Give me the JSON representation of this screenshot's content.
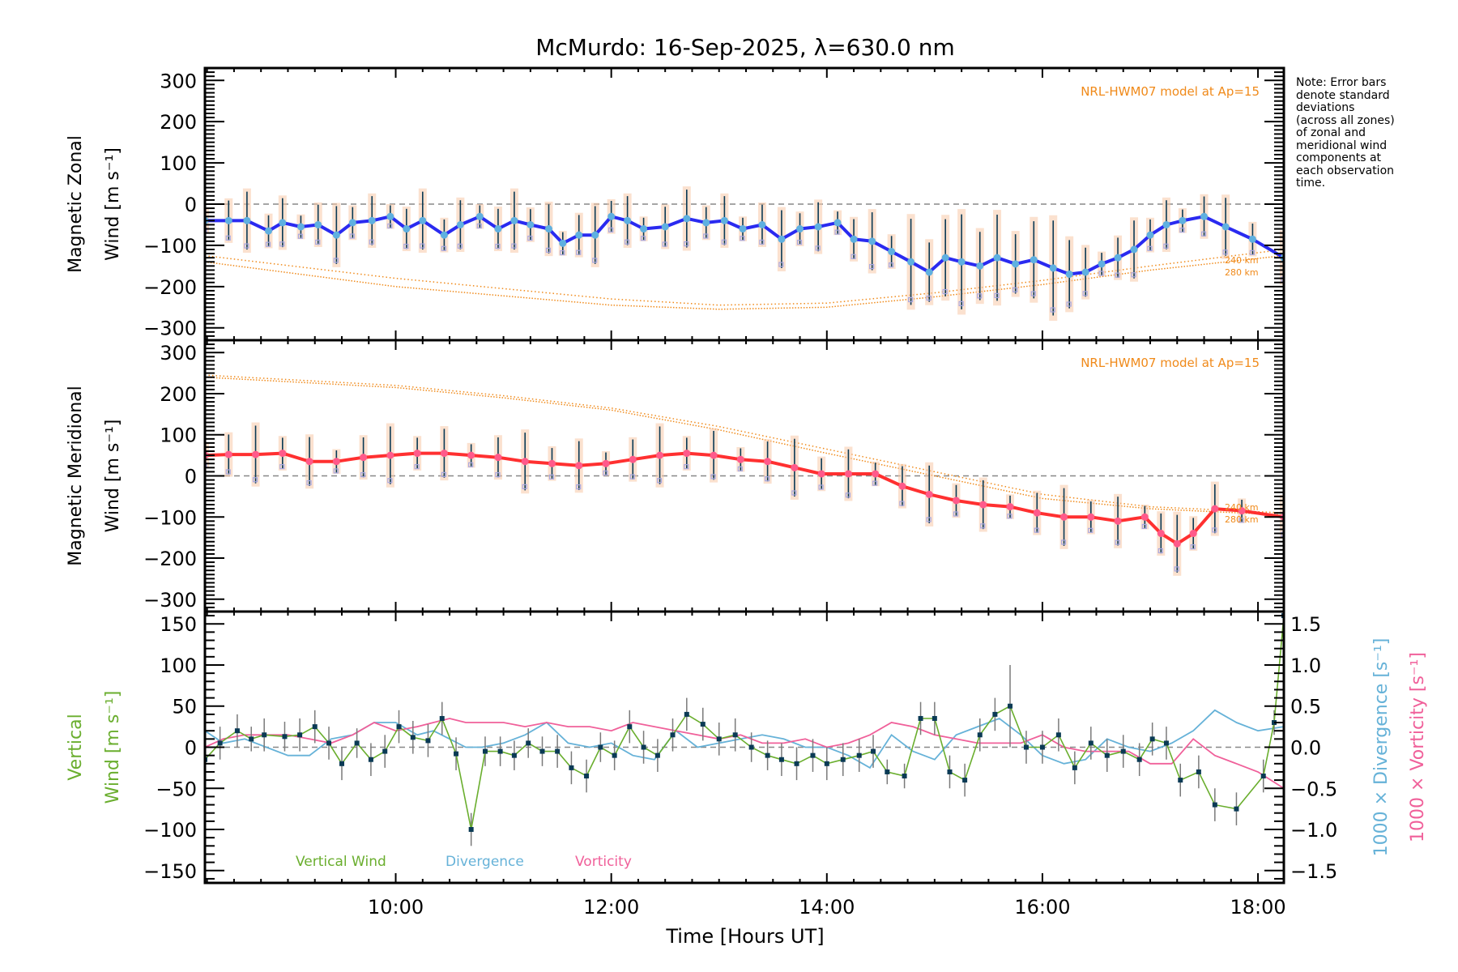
{
  "chart_data": {
    "title": "McMurdo: 16-Sep-2025, λ=630.0 nm",
    "note": "Note: Error bars\ndenote standard\ndeviations\n(across all zones)\nof zonal and\nmeridional wind\ncomponents at\neach observation\ntime.",
    "xlabel": "Time [Hours UT]",
    "xlim": [
      8.23,
      18.24
    ],
    "xticks": [
      {
        "value": 10,
        "label": "10:00"
      },
      {
        "value": 12,
        "label": "12:00"
      },
      {
        "value": 14,
        "label": "14:00"
      },
      {
        "value": 16,
        "label": "16:00"
      },
      {
        "value": 18,
        "label": "18:00"
      }
    ],
    "colors": {
      "zonal": "#2a2af0",
      "zonal_marker": "#5fb0e0",
      "meridional": "#ff3030",
      "meridional_marker": "#ff5a8a",
      "model": "#f08a1a",
      "vertical": "#6aae2e",
      "divergence": "#66b2d8",
      "vorticity": "#f0609a",
      "errorbar": "#0a3a55",
      "zone_point": "#a8a8e0",
      "zero_line": "#888888"
    },
    "panels": [
      {
        "type": "line",
        "id": "zonal",
        "ylabel_line1": "Magnetic Zonal",
        "ylabel_line2": "Wind [m s⁻¹]",
        "ylim": [
          -330,
          330
        ],
        "yticks": [
          300,
          200,
          100,
          0,
          -100,
          -200,
          -300
        ],
        "model_label": "NRL-HWM07 model at Ap=15",
        "model_alt_labels": [
          "240 km",
          "280 km"
        ],
        "series": {
          "name": "Zonal wind",
          "x": [
            8.23,
            8.45,
            8.62,
            8.82,
            8.95,
            9.12,
            9.28,
            9.45,
            9.6,
            9.78,
            9.95,
            10.1,
            10.25,
            10.45,
            10.6,
            10.78,
            10.95,
            11.1,
            11.25,
            11.42,
            11.55,
            11.7,
            11.85,
            12.0,
            12.15,
            12.3,
            12.5,
            12.7,
            12.88,
            13.05,
            13.22,
            13.4,
            13.58,
            13.75,
            13.92,
            14.1,
            14.25,
            14.42,
            14.6,
            14.78,
            14.95,
            15.1,
            15.25,
            15.42,
            15.58,
            15.75,
            15.92,
            16.1,
            16.25,
            16.4,
            16.55,
            16.7,
            16.85,
            17.0,
            17.15,
            17.3,
            17.5,
            17.7,
            17.95,
            18.24
          ],
          "values": [
            -40,
            -40,
            -40,
            -65,
            -45,
            -55,
            -50,
            -75,
            -45,
            -40,
            -30,
            -60,
            -40,
            -75,
            -50,
            -30,
            -60,
            -40,
            -50,
            -60,
            -95,
            -75,
            -75,
            -30,
            -40,
            -60,
            -55,
            -35,
            -45,
            -40,
            -60,
            -50,
            -85,
            -60,
            -55,
            -45,
            -85,
            -90,
            -115,
            -140,
            -165,
            -130,
            -140,
            -150,
            -130,
            -145,
            -135,
            -155,
            -170,
            -165,
            -145,
            -130,
            -110,
            -75,
            -50,
            -40,
            -30,
            -55,
            -85,
            -130
          ]
        },
        "model_240km": {
          "x": [
            8.23,
            10,
            12,
            13,
            14,
            15,
            16,
            17,
            18.24
          ],
          "values": [
            -125,
            -180,
            -230,
            -245,
            -240,
            -215,
            -185,
            -150,
            -110
          ]
        },
        "model_280km": {
          "x": [
            8.23,
            10,
            12,
            13,
            14,
            15,
            16,
            17,
            18.24
          ],
          "values": [
            -140,
            -200,
            -245,
            -255,
            -250,
            -225,
            -195,
            -160,
            -125
          ]
        }
      },
      {
        "type": "line",
        "id": "meridional",
        "ylabel_line1": "Magnetic Meridional",
        "ylabel_line2": "Wind [m s⁻¹]",
        "ylim": [
          -330,
          330
        ],
        "yticks": [
          300,
          200,
          100,
          0,
          -100,
          -200,
          -300
        ],
        "model_label": "NRL-HWM07 model at Ap=15",
        "model_alt_labels": [
          "240 km",
          "280 km"
        ],
        "series": {
          "name": "Meridional wind",
          "x": [
            8.23,
            8.45,
            8.7,
            8.95,
            9.2,
            9.45,
            9.7,
            9.95,
            10.2,
            10.45,
            10.7,
            10.95,
            11.2,
            11.45,
            11.7,
            11.95,
            12.2,
            12.45,
            12.7,
            12.95,
            13.2,
            13.45,
            13.7,
            13.95,
            14.2,
            14.45,
            14.7,
            14.95,
            15.2,
            15.45,
            15.7,
            15.95,
            16.2,
            16.45,
            16.7,
            16.95,
            17.1,
            17.25,
            17.4,
            17.6,
            17.85,
            18.24
          ],
          "values": [
            50,
            52,
            52,
            55,
            35,
            35,
            45,
            50,
            55,
            55,
            50,
            45,
            35,
            30,
            25,
            30,
            40,
            50,
            55,
            50,
            40,
            35,
            20,
            5,
            5,
            5,
            -25,
            -45,
            -60,
            -70,
            -75,
            -90,
            -100,
            -100,
            -110,
            -100,
            -140,
            -165,
            -140,
            -80,
            -85,
            -100
          ]
        },
        "model_240km": {
          "x": [
            8.23,
            10,
            11,
            12,
            13,
            14,
            15,
            16,
            17,
            18.24
          ],
          "values": [
            245,
            220,
            195,
            165,
            120,
            65,
            10,
            -45,
            -75,
            -90
          ]
        },
        "model_280km": {
          "x": [
            8.23,
            10,
            11,
            12,
            13,
            14,
            15,
            16,
            17,
            18.24
          ],
          "values": [
            240,
            215,
            190,
            160,
            112,
            55,
            0,
            -55,
            -80,
            -95
          ]
        }
      },
      {
        "type": "line",
        "id": "vertical",
        "ylabel_line1": "Vertical",
        "ylabel_line2": "Wind [m s⁻¹]",
        "ylim": [
          -165,
          165
        ],
        "yticks": [
          150,
          100,
          50,
          0,
          -50,
          -100,
          -150
        ],
        "y2label_1": "1000 × Divergence [s⁻¹]",
        "y2label_2": "1000 × Vorticity [s⁻¹]",
        "y2lim": [
          -1.65,
          1.65
        ],
        "y2ticks": [
          {
            "value": 1.5,
            "label": "1.5"
          },
          {
            "value": 1.0,
            "label": "1.0"
          },
          {
            "value": 0.5,
            "label": "0.5"
          },
          {
            "value": 0.0,
            "label": "0.0"
          },
          {
            "value": -0.5,
            "label": "−0.5"
          },
          {
            "value": -1.0,
            "label": "−1.0"
          },
          {
            "value": -1.5,
            "label": "−1.5"
          }
        ],
        "legend": [
          "Vertical Wind",
          "Divergence",
          "Vorticity"
        ],
        "vertical_wind": {
          "x": [
            8.23,
            8.37,
            8.53,
            8.66,
            8.78,
            8.97,
            9.11,
            9.25,
            9.38,
            9.5,
            9.64,
            9.77,
            9.9,
            10.03,
            10.16,
            10.3,
            10.43,
            10.56,
            10.7,
            10.83,
            10.97,
            11.1,
            11.23,
            11.36,
            11.5,
            11.63,
            11.77,
            11.9,
            12.03,
            12.17,
            12.3,
            12.43,
            12.57,
            12.7,
            12.85,
            13.0,
            13.15,
            13.3,
            13.45,
            13.58,
            13.72,
            13.87,
            14.0,
            14.15,
            14.3,
            14.43,
            14.56,
            14.72,
            14.87,
            15.0,
            15.14,
            15.28,
            15.42,
            15.56,
            15.7,
            15.85,
            16.0,
            16.15,
            16.3,
            16.45,
            16.6,
            16.75,
            16.9,
            17.02,
            17.15,
            17.28,
            17.45,
            17.6,
            17.8,
            18.05,
            18.15,
            18.24
          ],
          "values": [
            -15,
            5,
            20,
            10,
            15,
            13,
            15,
            25,
            5,
            -20,
            5,
            -15,
            -5,
            25,
            12,
            8,
            35,
            -8,
            -100,
            -5,
            -5,
            -10,
            5,
            -5,
            -5,
            -25,
            -35,
            0,
            -10,
            25,
            0,
            -10,
            15,
            40,
            28,
            10,
            15,
            0,
            -10,
            -15,
            -20,
            -10,
            -20,
            -15,
            -10,
            -5,
            -30,
            -35,
            35,
            35,
            -30,
            -40,
            15,
            40,
            50,
            0,
            0,
            15,
            -25,
            5,
            -10,
            -5,
            -15,
            10,
            5,
            -40,
            -30,
            -70,
            -75,
            -35,
            30,
            160
          ],
          "errors": [
            20,
            20,
            20,
            15,
            20,
            18,
            20,
            20,
            20,
            20,
            18,
            20,
            20,
            20,
            20,
            20,
            20,
            20,
            20,
            18,
            18,
            18,
            18,
            18,
            20,
            20,
            20,
            18,
            18,
            20,
            20,
            20,
            20,
            20,
            20,
            20,
            20,
            18,
            18,
            20,
            20,
            20,
            20,
            20,
            20,
            20,
            15,
            15,
            20,
            20,
            20,
            20,
            20,
            20,
            50,
            20,
            20,
            20,
            20,
            20,
            20,
            20,
            20,
            20,
            20,
            20,
            20,
            20,
            20,
            20,
            15,
            0
          ]
        },
        "divergence": {
          "x": [
            8.23,
            8.4,
            8.6,
            8.8,
            9.0,
            9.2,
            9.4,
            9.6,
            9.8,
            10.0,
            10.2,
            10.35,
            10.5,
            10.65,
            10.8,
            11.0,
            11.2,
            11.4,
            11.6,
            11.8,
            12.0,
            12.2,
            12.4,
            12.6,
            12.8,
            13.0,
            13.2,
            13.4,
            13.6,
            13.8,
            14.0,
            14.2,
            14.4,
            14.6,
            14.8,
            15.0,
            15.2,
            15.4,
            15.6,
            15.8,
            16.0,
            16.2,
            16.4,
            16.6,
            16.8,
            17.0,
            17.2,
            17.4,
            17.6,
            17.8,
            18.0,
            18.24
          ],
          "values": [
            0.2,
            0.05,
            0.1,
            0.0,
            -0.1,
            -0.1,
            0.1,
            0.15,
            0.3,
            0.3,
            0.15,
            0.2,
            0.1,
            0.0,
            0.0,
            0.05,
            0.15,
            0.3,
            0.05,
            0.0,
            0.05,
            -0.1,
            -0.15,
            0.2,
            0.0,
            0.05,
            0.1,
            0.15,
            0.1,
            0.0,
            0.0,
            -0.1,
            -0.25,
            0.15,
            -0.05,
            -0.15,
            0.15,
            0.25,
            0.35,
            0.15,
            -0.1,
            -0.2,
            -0.15,
            0.1,
            0.0,
            -0.05,
            0.05,
            0.2,
            0.45,
            0.3,
            0.2,
            0.25
          ]
        },
        "vorticity": {
          "x": [
            8.23,
            8.4,
            8.6,
            8.8,
            9.0,
            9.2,
            9.4,
            9.6,
            9.8,
            10.0,
            10.2,
            10.35,
            10.5,
            10.65,
            10.8,
            11.0,
            11.2,
            11.4,
            11.6,
            11.8,
            12.0,
            12.2,
            12.4,
            12.6,
            12.8,
            13.0,
            13.2,
            13.4,
            13.6,
            13.8,
            14.0,
            14.2,
            14.4,
            14.6,
            14.8,
            15.0,
            15.2,
            15.4,
            15.6,
            15.8,
            16.0,
            16.2,
            16.4,
            16.6,
            16.8,
            17.0,
            17.2,
            17.4,
            17.6,
            17.8,
            18.0,
            18.24
          ],
          "values": [
            0.0,
            0.1,
            0.15,
            0.15,
            0.15,
            0.1,
            0.05,
            0.15,
            0.3,
            0.2,
            0.25,
            0.3,
            0.35,
            0.3,
            0.3,
            0.3,
            0.25,
            0.3,
            0.25,
            0.25,
            0.2,
            0.3,
            0.25,
            0.2,
            0.15,
            0.1,
            0.15,
            0.05,
            0.05,
            0.1,
            0.0,
            0.05,
            0.15,
            0.3,
            0.25,
            0.15,
            0.1,
            0.05,
            0.05,
            0.05,
            0.15,
            0.0,
            -0.05,
            -0.05,
            -0.05,
            -0.2,
            -0.2,
            0.1,
            -0.1,
            -0.2,
            -0.3,
            -0.5
          ]
        }
      }
    ]
  }
}
